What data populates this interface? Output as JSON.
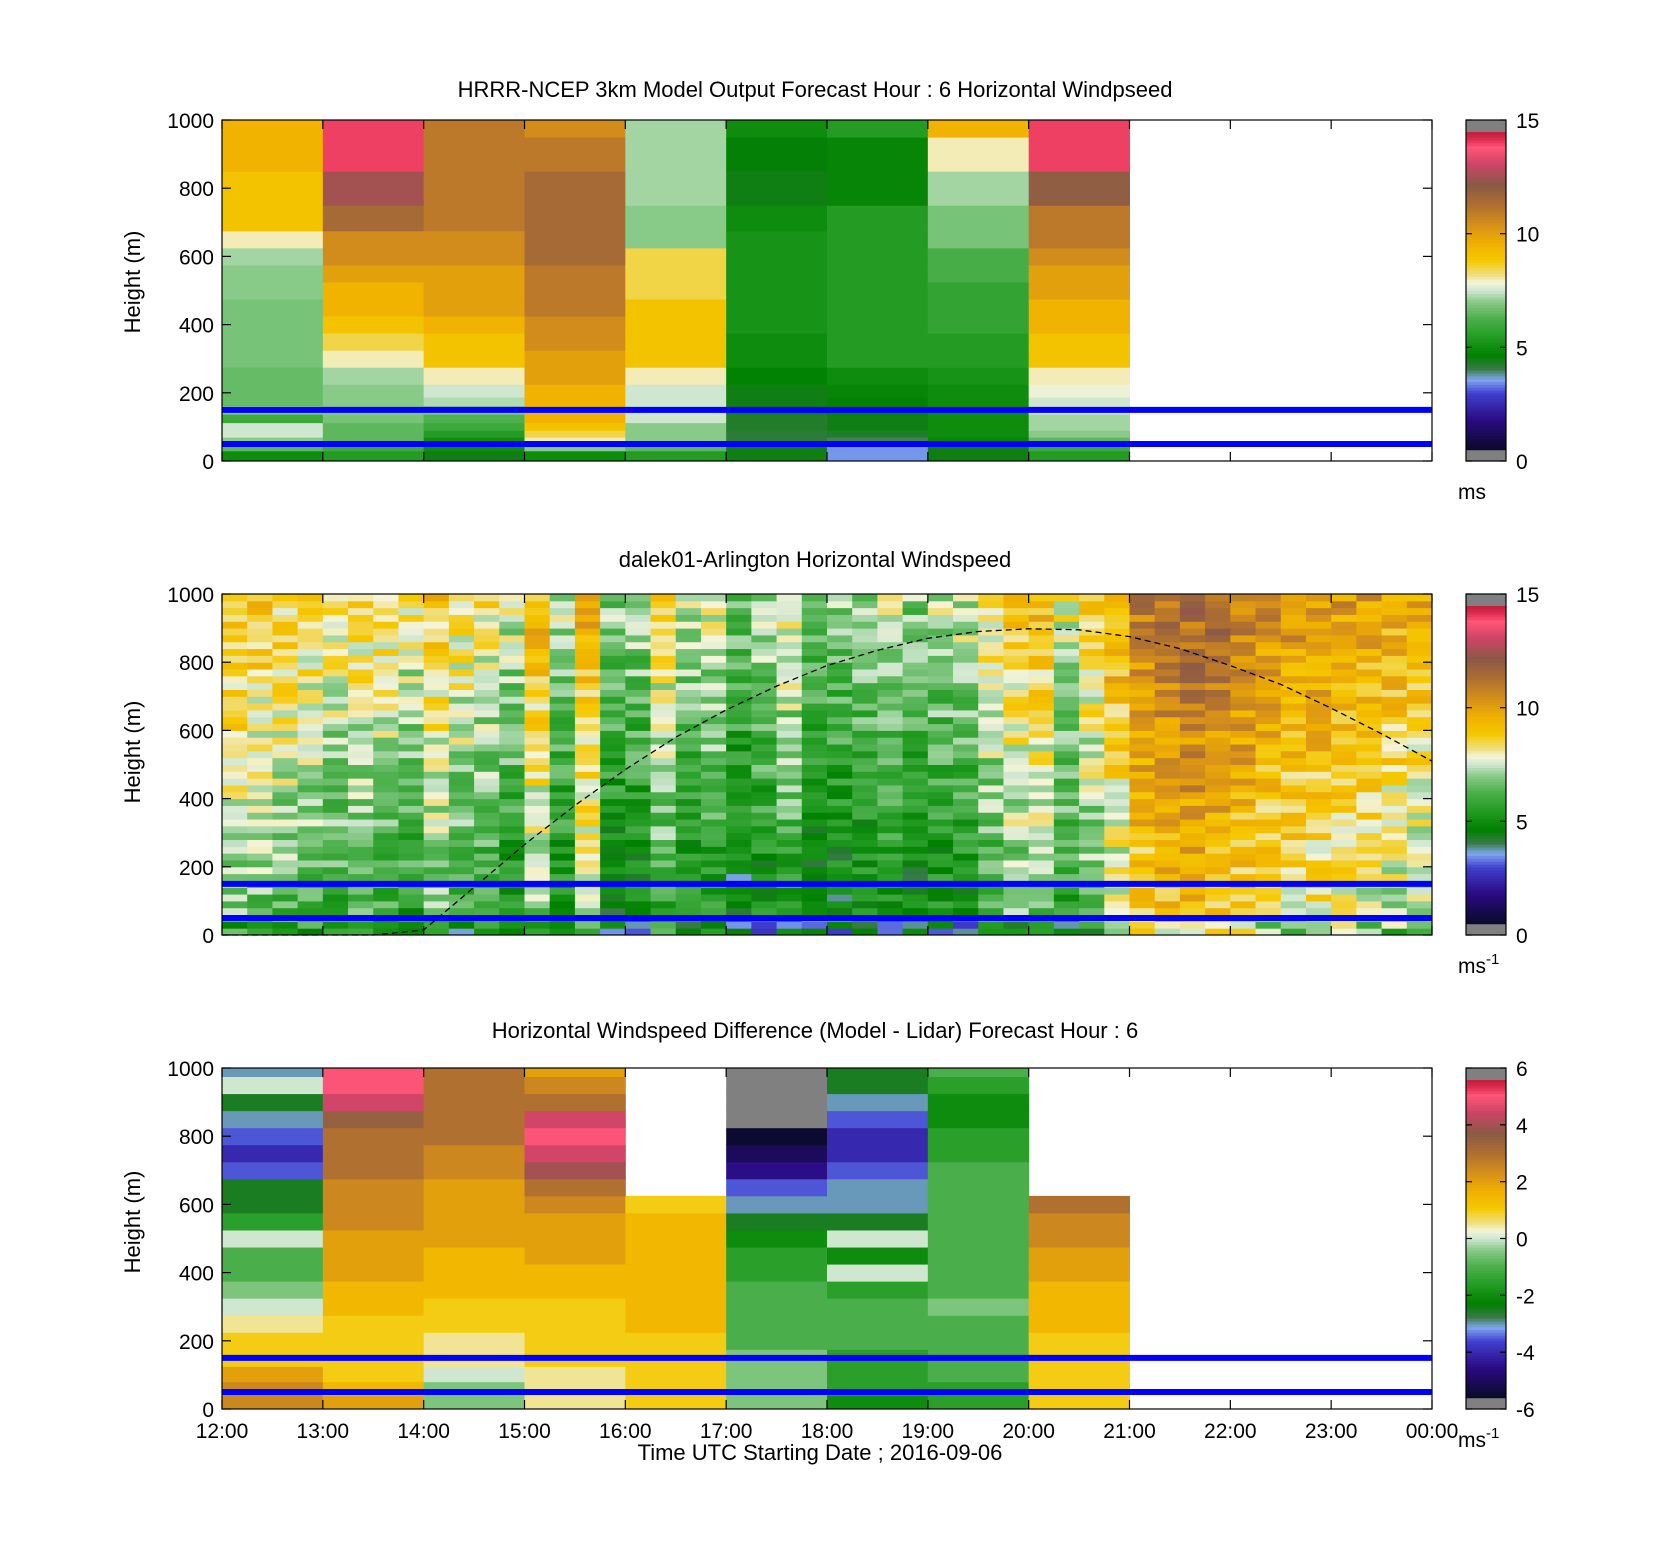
{
  "figure": {
    "shared_x_tick_labels": [
      "12:00",
      "13:00",
      "14:00",
      "15:00",
      "16:00",
      "17:00",
      "18:00",
      "19:00",
      "20:00",
      "21:00",
      "22:00",
      "23:00",
      "00:00"
    ],
    "x_axis_label": "Time UTC  Starting Date ; 2016-09-06"
  },
  "chart_data": [
    {
      "type": "heatmap",
      "title": "HRRR-NCEP 3km Model Output   Forecast Hour : 6 Horizontal Windpseed",
      "ylabel": "Height (m)",
      "ylim": [
        0,
        1000
      ],
      "yticks": [
        "0",
        "200",
        "400",
        "600",
        "800",
        "1000"
      ],
      "x_start_hour": 12,
      "x_end_hour": 24,
      "colorbar": {
        "range": [
          0,
          15
        ],
        "ticks": [
          "0",
          "5",
          "10",
          "15"
        ],
        "unit": "ms",
        "unit_superscript": ""
      },
      "reference_heights_m": [
        50,
        150
      ],
      "column_hours": [
        12,
        13,
        14,
        15,
        16,
        17,
        18,
        19,
        20
      ],
      "column_width_hours": 1,
      "profile_heights_m": [
        20,
        40,
        60,
        80,
        100,
        125,
        150,
        175,
        200,
        250,
        300,
        350,
        400,
        450,
        500,
        550,
        600,
        650,
        700,
        800,
        900,
        1000
      ],
      "profiles": [
        [
          5.0,
          6.5,
          7.0,
          7.5,
          7.5,
          6.0,
          7.0,
          6.6,
          6.6,
          6.6,
          6.8,
          6.8,
          6.8,
          6.8,
          7.0,
          7.0,
          7.2,
          8.0,
          9.0,
          9.0,
          9.5,
          9.5
        ],
        [
          5.5,
          6.0,
          6.5,
          6.5,
          6.5,
          6.8,
          7.0,
          7.0,
          7.0,
          7.2,
          8.0,
          8.5,
          9.0,
          9.5,
          9.5,
          10.0,
          10.5,
          10.5,
          11.5,
          12.5,
          14.0,
          14.0
        ],
        [
          4.5,
          5.0,
          5.0,
          5.5,
          6.0,
          6.3,
          7.0,
          7.3,
          7.5,
          8.0,
          9.0,
          9.0,
          9.5,
          10.0,
          10.0,
          10.0,
          10.5,
          10.5,
          11.0,
          11.0,
          11.0,
          11.0
        ],
        [
          5.0,
          7.0,
          8.0,
          8.5,
          9.0,
          9.5,
          9.5,
          9.5,
          9.5,
          10.0,
          10.0,
          10.5,
          10.5,
          11.0,
          11.0,
          11.0,
          11.5,
          11.5,
          11.5,
          11.5,
          11.0,
          10.5
        ],
        [
          5.5,
          6.5,
          7.0,
          7.0,
          7.0,
          7.5,
          7.5,
          7.5,
          7.5,
          8.0,
          9.0,
          9.0,
          9.0,
          9.0,
          8.5,
          8.5,
          8.5,
          7.0,
          7.0,
          7.2,
          7.2,
          7.2
        ],
        [
          4.5,
          4.5,
          4.2,
          4.2,
          4.3,
          4.3,
          4.5,
          4.5,
          4.5,
          4.7,
          5.0,
          5.0,
          5.2,
          5.2,
          5.2,
          5.2,
          5.2,
          5.2,
          5.0,
          4.5,
          4.6,
          5.0
        ],
        [
          3.5,
          3.5,
          4.0,
          4.3,
          4.5,
          4.5,
          4.6,
          4.6,
          4.8,
          5.0,
          5.5,
          5.5,
          5.5,
          5.5,
          5.5,
          5.5,
          5.5,
          5.5,
          5.5,
          4.8,
          4.8,
          5.5
        ],
        [
          4.5,
          4.5,
          4.8,
          5.0,
          5.0,
          5.0,
          5.0,
          5.0,
          5.0,
          5.2,
          5.5,
          5.5,
          5.8,
          5.8,
          5.8,
          6.2,
          6.2,
          6.8,
          6.8,
          7.2,
          8.0,
          9.5
        ],
        [
          5.5,
          6.0,
          6.5,
          7.0,
          7.2,
          7.2,
          7.5,
          7.5,
          7.8,
          8.0,
          9.0,
          9.0,
          9.5,
          9.5,
          10.0,
          10.0,
          10.5,
          11.0,
          11.0,
          12.0,
          14.0,
          14.0
        ]
      ]
    },
    {
      "type": "heatmap",
      "title": "dalek01-Arlington  Horizontal Windspeed",
      "ylabel": "Height (m)",
      "ylim": [
        0,
        1000
      ],
      "yticks": [
        "0",
        "200",
        "400",
        "600",
        "800",
        "1000"
      ],
      "x_start_hour": 12,
      "x_end_hour": 24,
      "colorbar": {
        "range": [
          0,
          15
        ],
        "ticks": [
          "0",
          "5",
          "10",
          "15"
        ],
        "unit": "ms",
        "unit_superscript": "-1"
      },
      "reference_heights_m": [
        50,
        150
      ],
      "column_hours": [
        12.0,
        12.25,
        12.5,
        12.75,
        13.0,
        13.25,
        13.5,
        13.75,
        14.0,
        14.25,
        14.5,
        14.75,
        15.0,
        15.25,
        15.5,
        15.75,
        16.0,
        16.25,
        16.5,
        16.75,
        17.0,
        17.25,
        17.5,
        17.75,
        18.0,
        18.25,
        18.5,
        18.75,
        19.0,
        19.25,
        19.5,
        19.75,
        20.0,
        20.25,
        20.5,
        20.75,
        21.0,
        21.25,
        21.5,
        21.75,
        22.0,
        22.25,
        22.5,
        22.75,
        23.0,
        23.25,
        23.5,
        23.75
      ],
      "column_width_hours": 0.25,
      "column_mean_speed": [
        8.5,
        8.2,
        8.0,
        7.8,
        7.5,
        7.8,
        7.6,
        7.2,
        8.2,
        7.6,
        7.4,
        6.8,
        8.6,
        6.6,
        8.8,
        6.2,
        6.4,
        7.6,
        6.6,
        7.0,
        6.0,
        6.6,
        7.2,
        6.0,
        6.2,
        6.4,
        6.8,
        6.2,
        6.6,
        6.8,
        7.6,
        8.2,
        8.4,
        7.2,
        8.0,
        9.0,
        10.2,
        10.6,
        10.8,
        10.6,
        10.2,
        9.8,
        9.6,
        9.6,
        9.4,
        9.2,
        9.0,
        8.8
      ],
      "boundary_curve": {
        "hours": [
          12.0,
          12.5,
          13.0,
          13.5,
          14.0,
          14.5,
          15.0,
          15.5,
          16.0,
          16.5,
          17.0,
          17.5,
          18.0,
          18.5,
          19.0,
          19.5,
          20.0,
          20.5,
          21.0,
          21.5,
          22.0,
          22.5,
          23.0,
          23.5,
          24.0
        ],
        "heights_m": [
          0,
          0,
          0,
          0,
          15,
          140,
          265,
          380,
          485,
          580,
          660,
          730,
          790,
          835,
          870,
          890,
          898,
          895,
          875,
          840,
          790,
          735,
          665,
          590,
          510
        ]
      }
    },
    {
      "type": "heatmap",
      "title": "Horizontal Windspeed Difference (Model - Lidar) Forecast Hour : 6",
      "xlabel": "Time UTC  Starting Date ; 2016-09-06",
      "ylabel": "Height (m)",
      "ylim": [
        0,
        1000
      ],
      "yticks": [
        "0",
        "200",
        "400",
        "600",
        "800",
        "1000"
      ],
      "x_start_hour": 12,
      "x_end_hour": 24,
      "colorbar": {
        "range": [
          -6,
          6
        ],
        "ticks": [
          "-6",
          "-4",
          "-2",
          "0",
          "2",
          "4",
          "6"
        ],
        "unit": "ms",
        "unit_superscript": "-1"
      },
      "reference_heights_m": [
        50,
        150
      ],
      "column_hours": [
        12,
        13,
        14,
        15,
        16,
        17,
        18,
        19,
        20
      ],
      "column_width_hours": 1,
      "profile_heights_m": [
        20,
        60,
        100,
        150,
        200,
        250,
        300,
        350,
        400,
        450,
        500,
        550,
        600,
        650,
        700,
        750,
        800,
        850,
        900,
        950,
        1000
      ],
      "profiles": [
        [
          2.5,
          2.5,
          2.0,
          1.0,
          1.0,
          0.5,
          0.0,
          -0.5,
          -1.0,
          -1.0,
          0.0,
          -1.5,
          -2.5,
          -2.5,
          -3.5,
          -4.0,
          -3.5,
          -3.0,
          -2.5,
          0.0,
          -3.0
        ],
        [
          2.0,
          1.5,
          1.0,
          1.0,
          1.0,
          1.0,
          1.5,
          1.5,
          2.0,
          2.0,
          2.0,
          2.5,
          2.5,
          2.5,
          3.0,
          3.0,
          3.0,
          3.5,
          4.5,
          5.0,
          5.0
        ],
        [
          -0.5,
          -0.5,
          0.0,
          0.5,
          0.5,
          1.0,
          1.0,
          1.5,
          1.5,
          1.5,
          2.0,
          2.0,
          2.0,
          2.0,
          2.5,
          2.5,
          3.0,
          3.0,
          3.0,
          3.0,
          3.0
        ],
        [
          0.5,
          0.5,
          0.5,
          1.0,
          1.0,
          1.0,
          1.0,
          1.5,
          1.5,
          2.0,
          2.0,
          2.0,
          2.5,
          3.0,
          4.0,
          4.5,
          5.0,
          4.5,
          3.0,
          2.5,
          2.0
        ],
        [
          1.0,
          1.0,
          1.0,
          1.0,
          1.0,
          1.5,
          1.5,
          1.5,
          1.5,
          1.5,
          1.5,
          1.5,
          1.0,
          null,
          null,
          null,
          null,
          null,
          null,
          null,
          null
        ],
        [
          -0.5,
          -0.5,
          -0.5,
          -0.5,
          -1.0,
          -1.0,
          -1.0,
          -1.0,
          -1.5,
          -1.5,
          -2.0,
          -2.5,
          -3.0,
          -3.5,
          -4.5,
          -5.0,
          -5.5,
          -6.0,
          -6.0,
          -6.0,
          -6.0
        ],
        [
          -2.0,
          -1.5,
          -1.5,
          -1.5,
          -1.0,
          -1.0,
          -1.0,
          -1.5,
          0.0,
          -2.0,
          0.0,
          -2.5,
          -3.0,
          -3.0,
          -3.5,
          -4.0,
          -4.0,
          -3.5,
          -3.0,
          -2.5,
          -2.5
        ],
        [
          -1.5,
          -1.5,
          -1.0,
          -1.0,
          -1.0,
          -1.0,
          -0.5,
          -1.0,
          -1.0,
          -1.0,
          -1.0,
          -1.0,
          -1.0,
          -1.0,
          -1.0,
          -1.5,
          -1.5,
          -2.0,
          -2.0,
          -1.5,
          -1.0
        ],
        [
          1.0,
          1.0,
          1.0,
          1.0,
          1.0,
          1.5,
          1.5,
          1.5,
          2.0,
          2.0,
          2.5,
          2.5,
          3.0,
          null,
          null,
          null,
          null,
          null,
          null,
          null,
          null
        ]
      ]
    }
  ]
}
